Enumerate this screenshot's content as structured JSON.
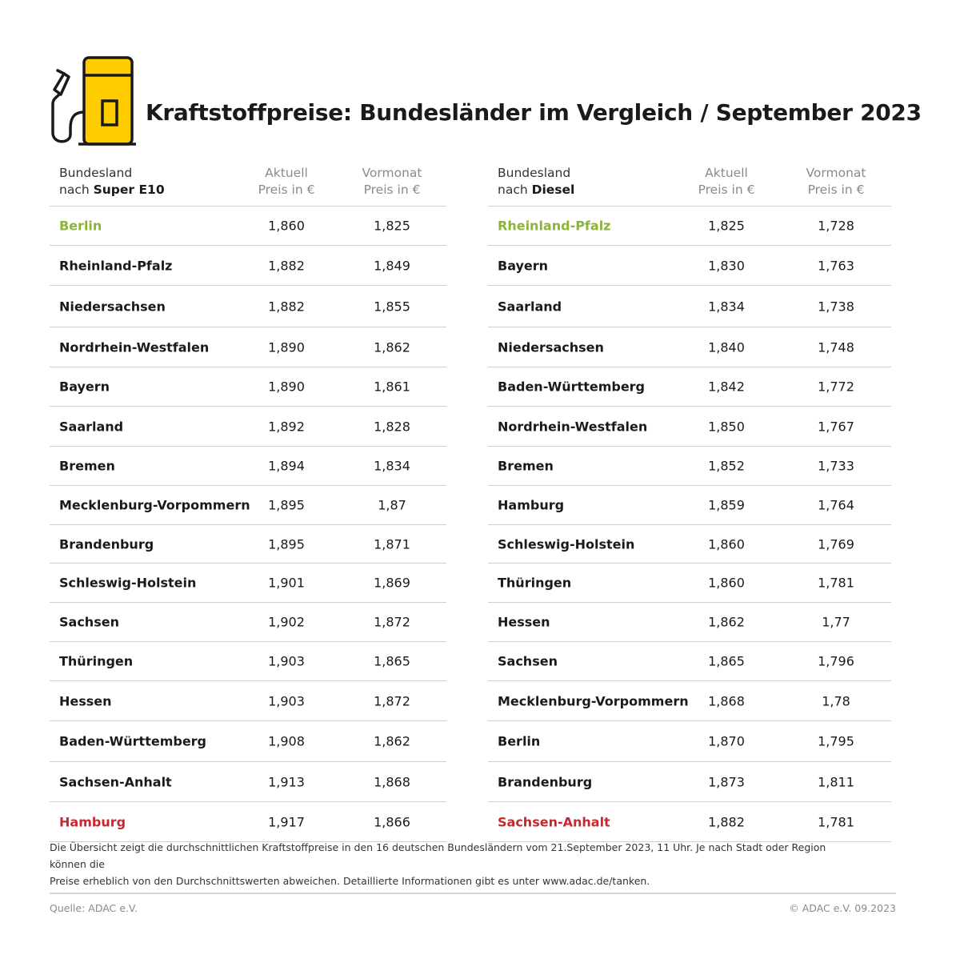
{
  "title": "Kraftstoffpreise: Bundesländer im Vergleich / September 2023",
  "colors": {
    "accent": "#ffcc00",
    "best": "#8cb33a",
    "worst": "#c8282c"
  },
  "icon": "fuel-pump-icon",
  "left_table": {
    "header_line1": "Bundesland",
    "header_line2_prefix": "nach ",
    "header_fuel": "Super E10",
    "col_current_line1": "Aktuell",
    "col_current_line2": "Preis in €",
    "col_prev_line1": "Vormonat",
    "col_prev_line2": "Preis in €",
    "rows": [
      {
        "name": "Berlin",
        "current": "1,860",
        "previous": "1,825",
        "status": "best"
      },
      {
        "name": "Rheinland-Pfalz",
        "current": "1,882",
        "previous": "1,849",
        "status": ""
      },
      {
        "name": "Niedersachsen",
        "current": "1,882",
        "previous": "1,855",
        "status": ""
      },
      {
        "name": "Nordrhein-Westfalen",
        "current": "1,890",
        "previous": "1,862",
        "status": ""
      },
      {
        "name": "Bayern",
        "current": "1,890",
        "previous": "1,861",
        "status": ""
      },
      {
        "name": "Saarland",
        "current": "1,892",
        "previous": "1,828",
        "status": ""
      },
      {
        "name": "Bremen",
        "current": "1,894",
        "previous": "1,834",
        "status": ""
      },
      {
        "name": "Mecklenburg-Vorpommern",
        "current": "1,895",
        "previous": "1,87",
        "status": ""
      },
      {
        "name": "Brandenburg",
        "current": "1,895",
        "previous": "1,871",
        "status": ""
      },
      {
        "name": "Schleswig-Holstein",
        "current": "1,901",
        "previous": "1,869",
        "status": ""
      },
      {
        "name": "Sachsen",
        "current": "1,902",
        "previous": "1,872",
        "status": ""
      },
      {
        "name": "Thüringen",
        "current": "1,903",
        "previous": "1,865",
        "status": ""
      },
      {
        "name": "Hessen",
        "current": "1,903",
        "previous": "1,872",
        "status": ""
      },
      {
        "name": "Baden-Württemberg",
        "current": "1,908",
        "previous": "1,862",
        "status": ""
      },
      {
        "name": "Sachsen-Anhalt",
        "current": "1,913",
        "previous": "1,868",
        "status": ""
      },
      {
        "name": "Hamburg",
        "current": "1,917",
        "previous": "1,866",
        "status": "worst"
      }
    ]
  },
  "right_table": {
    "header_line1": "Bundesland",
    "header_line2_prefix": "nach ",
    "header_fuel": "Diesel",
    "col_current_line1": "Aktuell",
    "col_current_line2": "Preis in €",
    "col_prev_line1": "Vormonat",
    "col_prev_line2": "Preis in €",
    "rows": [
      {
        "name": "Rheinland-Pfalz",
        "current": "1,825",
        "previous": "1,728",
        "status": "best"
      },
      {
        "name": "Bayern",
        "current": "1,830",
        "previous": "1,763",
        "status": ""
      },
      {
        "name": "Saarland",
        "current": "1,834",
        "previous": "1,738",
        "status": ""
      },
      {
        "name": "Niedersachsen",
        "current": "1,840",
        "previous": "1,748",
        "status": ""
      },
      {
        "name": "Baden-Württemberg",
        "current": "1,842",
        "previous": "1,772",
        "status": ""
      },
      {
        "name": "Nordrhein-Westfalen",
        "current": "1,850",
        "previous": "1,767",
        "status": ""
      },
      {
        "name": "Bremen",
        "current": "1,852",
        "previous": "1,733",
        "status": ""
      },
      {
        "name": "Hamburg",
        "current": "1,859",
        "previous": "1,764",
        "status": ""
      },
      {
        "name": "Schleswig-Holstein",
        "current": "1,860",
        "previous": "1,769",
        "status": ""
      },
      {
        "name": "Thüringen",
        "current": "1,860",
        "previous": "1,781",
        "status": ""
      },
      {
        "name": "Hessen",
        "current": "1,862",
        "previous": "1,77",
        "status": ""
      },
      {
        "name": "Sachsen",
        "current": "1,865",
        "previous": "1,796",
        "status": ""
      },
      {
        "name": "Mecklenburg-Vorpommern",
        "current": "1,868",
        "previous": "1,78",
        "status": ""
      },
      {
        "name": "Berlin",
        "current": "1,870",
        "previous": "1,795",
        "status": ""
      },
      {
        "name": "Brandenburg",
        "current": "1,873",
        "previous": "1,811",
        "status": ""
      },
      {
        "name": "Sachsen-Anhalt",
        "current": "1,882",
        "previous": "1,781",
        "status": "worst"
      }
    ]
  },
  "footnote_line1": "Die Übersicht zeigt die durchschnittlichen Kraftstoffpreise in den 16 deutschen Bundesländern vom 21.September 2023, 11 Uhr. Je nach Stadt oder Region können die",
  "footnote_line2": "Preise erheblich von den Durchschnittswerten abweichen. Detaillierte Informationen gibt es unter www.adac.de/tanken.",
  "source": "Quelle: ADAC e.V.",
  "copyright": "© ADAC e.V. 09.2023"
}
